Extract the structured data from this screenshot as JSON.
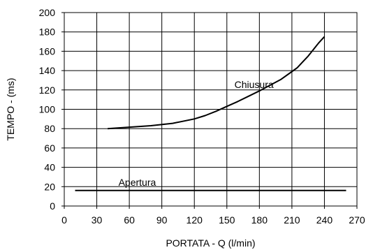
{
  "chart_data": {
    "type": "line",
    "xlabel": "PORTATA - Q (l/min)",
    "ylabel": "TEMPO - (ms)",
    "xlim": [
      0,
      270
    ],
    "ylim": [
      0,
      200
    ],
    "xticks": [
      0,
      30,
      60,
      90,
      120,
      150,
      180,
      210,
      240,
      270
    ],
    "yticks": [
      0,
      20,
      40,
      60,
      80,
      100,
      120,
      140,
      160,
      180,
      200
    ],
    "grid": true,
    "series": [
      {
        "name": "Chiusura",
        "x": [
          40,
          60,
          80,
          100,
          120,
          130,
          140,
          150,
          160,
          170,
          180,
          190,
          200,
          210,
          215,
          220,
          225,
          230,
          235,
          240
        ],
        "y": [
          80,
          81.5,
          83,
          85.5,
          90,
          93.5,
          98,
          103,
          108,
          113.5,
          119,
          125,
          131,
          139,
          143,
          149,
          155,
          162,
          169,
          175
        ],
        "color": "#000000"
      },
      {
        "name": "Apertura",
        "x": [
          10,
          260
        ],
        "y": [
          16,
          16
        ],
        "color": "#000000"
      }
    ],
    "annotations": [
      {
        "text": "Chiusura",
        "x": 157,
        "y": 122
      },
      {
        "text": "Apertura",
        "x": 50,
        "y": 21
      }
    ]
  }
}
